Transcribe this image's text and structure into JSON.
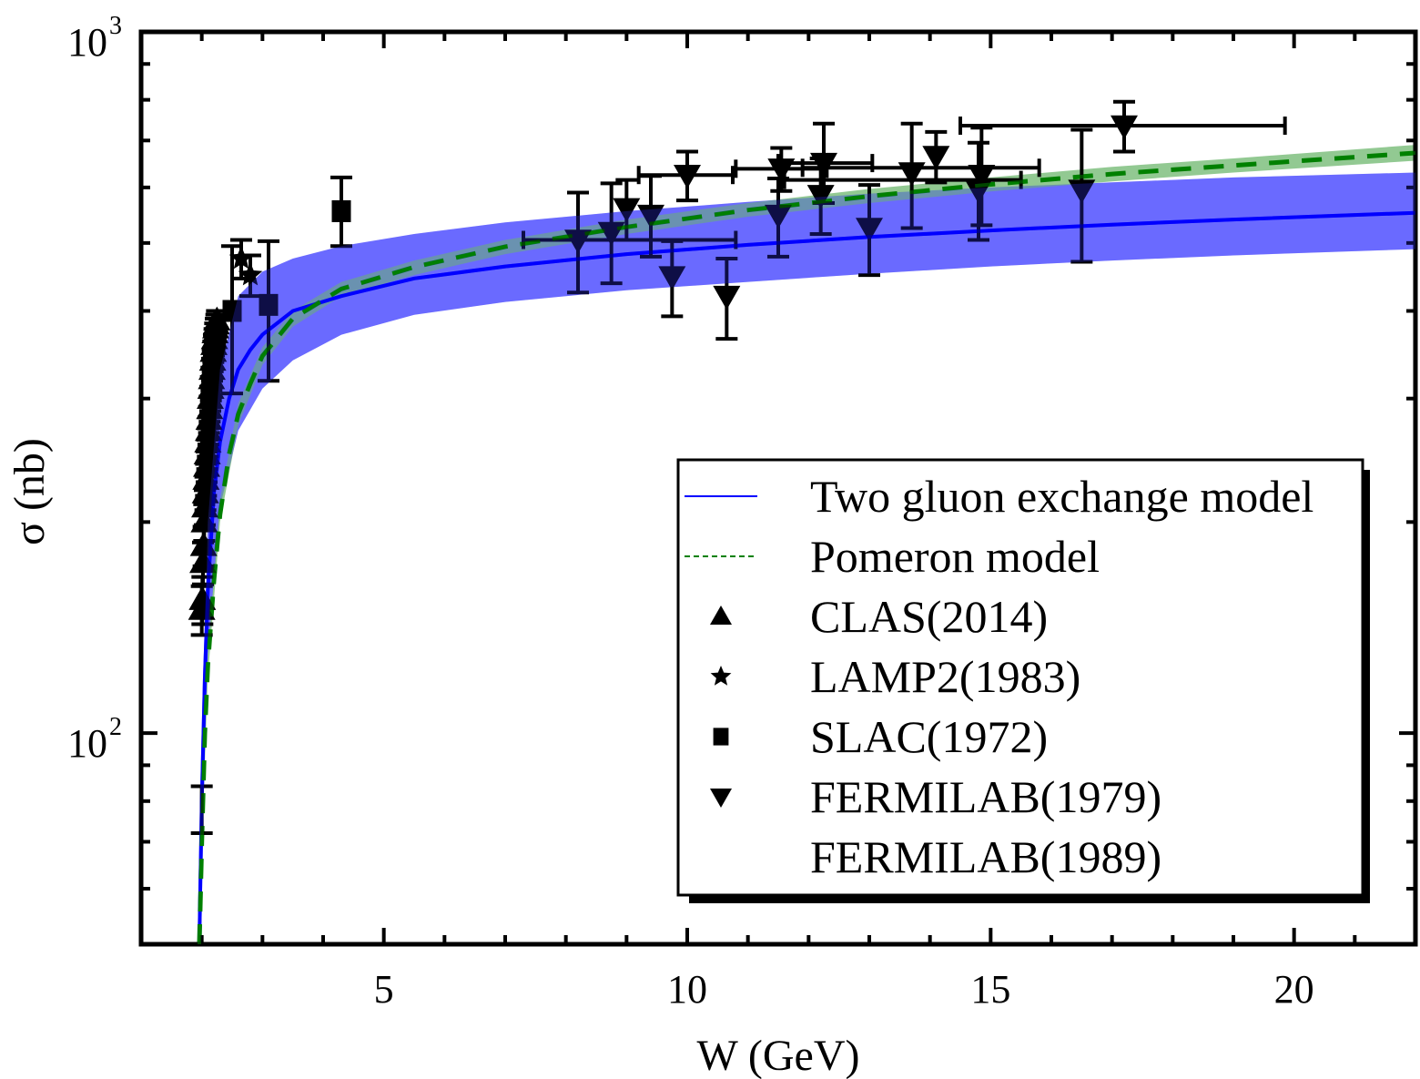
{
  "chart_data": {
    "type": "scatter",
    "title": "",
    "xlabel": "W (GeV)",
    "ylabel": "σ (nb)",
    "xlim": [
      1.0,
      22.0
    ],
    "ylim": [
      50,
      1000
    ],
    "yscale": "log",
    "grid": false,
    "x_ticks": [
      5,
      10,
      15,
      20
    ],
    "x_tick_labels": [
      "5",
      "10",
      "15",
      "20"
    ],
    "y_ticks": [
      100,
      1000
    ],
    "y_tick_labels": [
      {
        "base": "10",
        "exp": "2"
      },
      {
        "base": "10",
        "exp": "3"
      }
    ],
    "legend": {
      "placement": "lower-right",
      "entries": [
        {
          "label": "Two gluon exchange model",
          "symbol": "line",
          "color": "#0000ff"
        },
        {
          "label": "Pomeron model",
          "symbol": "dashed-line",
          "color": "#008000"
        },
        {
          "label": "CLAS(2014)",
          "symbol": "triangle-up",
          "color": "#000000"
        },
        {
          "label": "LAMP2(1983)",
          "symbol": "star",
          "color": "#000000"
        },
        {
          "label": "SLAC(1972)",
          "symbol": "square",
          "color": "#000000"
        },
        {
          "label": "FERMILAB(1979)",
          "symbol": "triangle-down",
          "color": "#000000"
        },
        {
          "label": "FERMILAB(1989)",
          "symbol": "none",
          "color": "#000000"
        }
      ]
    },
    "bands": [
      {
        "name": "Two gluon exchange model band",
        "color": "#7f7fff",
        "x": [
          1.96,
          2.0,
          2.1,
          2.3,
          2.6,
          3.0,
          3.5,
          4.3,
          5.5,
          7.0,
          9.0,
          11.0,
          13.0,
          15.0,
          17.0,
          19.0,
          22.0
        ],
        "lower": [
          50,
          70,
          130,
          210,
          270,
          310,
          340,
          370,
          395,
          412,
          428,
          440,
          452,
          463,
          472,
          480,
          490
        ],
        "upper": [
          52,
          90,
          200,
          330,
          420,
          455,
          475,
          495,
          515,
          535,
          555,
          572,
          588,
          600,
          610,
          620,
          630
        ]
      },
      {
        "name": "Pomeron model band",
        "color": "#7fbf7f",
        "x": [
          1.96,
          2.0,
          2.1,
          2.3,
          2.6,
          3.0,
          3.5,
          4.3,
          5.5,
          7.0,
          9.0,
          11.0,
          13.0,
          15.0,
          17.0,
          19.0,
          22.0
        ],
        "lower": [
          50,
          68,
          120,
          200,
          275,
          335,
          380,
          420,
          450,
          482,
          515,
          545,
          570,
          592,
          612,
          630,
          655
        ],
        "upper": [
          52,
          72,
          130,
          215,
          295,
          355,
          400,
          440,
          472,
          505,
          540,
          570,
          597,
          620,
          642,
          660,
          690
        ]
      }
    ],
    "series": [
      {
        "name": "Two gluon exchange model",
        "type": "line",
        "color": "#0000ff",
        "x": [
          1.96,
          2.0,
          2.05,
          2.1,
          2.2,
          2.3,
          2.45,
          2.6,
          2.8,
          3.0,
          3.5,
          4.3,
          5.5,
          7.0,
          9.0,
          11.0,
          13.0,
          15.0,
          17.0,
          19.0,
          22.0
        ],
        "y": [
          50,
          80,
          120,
          160,
          220,
          260,
          300,
          330,
          352,
          370,
          400,
          420,
          445,
          463,
          482,
          497,
          510,
          521,
          531,
          540,
          552
        ]
      },
      {
        "name": "Pomeron model",
        "type": "dashed-line",
        "color": "#008000",
        "x": [
          1.96,
          2.0,
          2.05,
          2.1,
          2.2,
          2.3,
          2.45,
          2.6,
          2.8,
          3.0,
          3.5,
          4.3,
          5.5,
          7.0,
          9.0,
          11.0,
          13.0,
          15.0,
          17.0,
          19.0,
          22.0
        ],
        "y": [
          50,
          70,
          100,
          125,
          165,
          205,
          250,
          285,
          315,
          345,
          390,
          430,
          462,
          494,
          527,
          557,
          583,
          606,
          627,
          645,
          672
        ]
      },
      {
        "name": "CLAS(2014)",
        "marker": "triangle-up",
        "color": "#000000",
        "x": [
          2.0,
          2.01,
          2.02,
          2.03,
          2.04,
          2.05,
          2.06,
          2.07,
          2.08,
          2.09,
          2.1,
          2.11,
          2.12,
          2.13,
          2.14,
          2.15,
          2.16,
          2.17,
          2.18,
          2.19,
          2.2,
          2.21,
          2.22,
          2.23,
          2.24,
          2.25
        ],
        "y": [
          150,
          155,
          175,
          185,
          200,
          210,
          220,
          230,
          240,
          250,
          260,
          270,
          280,
          290,
          300,
          310,
          320,
          330,
          340,
          350,
          358,
          365,
          372,
          378,
          383,
          388
        ],
        "yerr": [
          12,
          12,
          12,
          12,
          12,
          12,
          12,
          12,
          12,
          12,
          12,
          12,
          12,
          12,
          12,
          12,
          12,
          12,
          12,
          12,
          12,
          12,
          12,
          12,
          12,
          12
        ]
      },
      {
        "name": "CLAS(2014) low",
        "marker": "none",
        "color": "#000000",
        "x": [
          2.0
        ],
        "y": [
          78
        ],
        "yerr_low": [
          6
        ],
        "yerr_high": [
          6
        ]
      },
      {
        "name": "LAMP2(1983)",
        "marker": "star",
        "color": "#000000",
        "x": [
          2.65,
          2.8
        ],
        "y": [
          475,
          450
        ],
        "yerr": [
          30,
          30
        ]
      },
      {
        "name": "SLAC(1972)",
        "marker": "square",
        "color": "#000000",
        "x": [
          2.5,
          3.1,
          4.3
        ],
        "y": [
          400,
          408,
          555
        ],
        "yerr_low": [
          95,
          90,
          60
        ],
        "yerr_high": [
          95,
          95,
          65
        ]
      },
      {
        "name": "FERMILAB(1979)",
        "marker": "triangle-down",
        "color": "#000000",
        "x": [
          8.2,
          8.75,
          9.0,
          9.4,
          9.75,
          10.0,
          10.65,
          11.5,
          11.55,
          12.2,
          12.25,
          13.0,
          13.7,
          14.1,
          14.8,
          14.85,
          16.5,
          17.2
        ],
        "y": [
          505,
          518,
          560,
          548,
          448,
          625,
          420,
          548,
          638,
          585,
          650,
          525,
          630,
          665,
          595,
          625,
          595,
          735
        ],
        "yerr_low": [
          80,
          80,
          55,
          70,
          55,
          50,
          55,
          70,
          45,
          70,
          80,
          75,
          105,
          55,
          90,
          95,
          125,
          60
        ],
        "yerr_high": [
          85,
          90,
          55,
          75,
          55,
          50,
          55,
          70,
          45,
          75,
          90,
          80,
          110,
          55,
          100,
          105,
          130,
          60
        ],
        "xerr_low": [
          0,
          0,
          0,
          0,
          0,
          0.8,
          0,
          0,
          0.75,
          0,
          0.75,
          0,
          0,
          0,
          0,
          0,
          0,
          2.7
        ],
        "xerr_high": [
          0,
          0,
          0,
          0,
          0,
          0.75,
          0,
          0,
          0.75,
          0,
          0.8,
          0,
          0,
          0,
          0,
          0,
          0,
          2.65
        ]
      },
      {
        "name": "FERMILAB(1989)",
        "marker": "none",
        "color": "#000000",
        "x": [
          9.6,
          13.7,
          13.1
        ],
        "y": [
          505,
          640,
          615
        ],
        "xerr_low": [
          2.3,
          1.8,
          1.5
        ],
        "xerr_high": [
          1.2,
          2.1,
          2.4
        ],
        "yerr_low": [
          0,
          0,
          0
        ],
        "yerr_high": [
          0,
          0,
          0
        ]
      }
    ]
  }
}
